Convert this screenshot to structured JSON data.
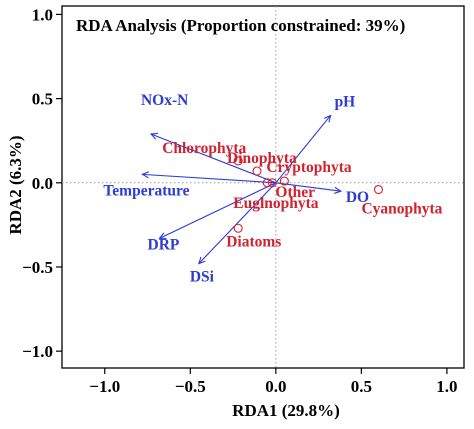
{
  "chart_data": {
    "type": "scatter",
    "title": "RDA Analysis (Proportion constrained: 39%)",
    "xlabel": "RDA1  (29.8%)",
    "ylabel": "RDA2  (6.3%)",
    "xlim": [
      -1.25,
      1.1
    ],
    "ylim": [
      -1.1,
      1.05
    ],
    "xticks": [
      -1.0,
      -0.5,
      0.0,
      0.5,
      1.0
    ],
    "yticks": [
      -1.0,
      -0.5,
      0.0,
      0.5,
      1.0
    ],
    "xtick_labels": [
      "−1.0",
      "−0.5",
      "0.0",
      "0.5",
      "1.0"
    ],
    "ytick_labels": [
      "−1.0",
      "−0.5",
      "0.0",
      "0.5",
      "1.0"
    ],
    "grid": false,
    "reference_lines": "dotted lines at x = 0 and y = 0",
    "colors": {
      "species": "#d0222f",
      "environment": "#2b3bd6",
      "axes": "#000000",
      "reference": "#9a9a9a"
    },
    "species": [
      {
        "name": "Chlorophyta",
        "x": -0.22,
        "y": 0.13
      },
      {
        "name": "Dinophyta",
        "x": -0.11,
        "y": 0.07
      },
      {
        "name": "Cryptophyta",
        "x": 0.05,
        "y": 0.01
      },
      {
        "name": "Other",
        "x": -0.02,
        "y": 0.0
      },
      {
        "name": "Euglnophyta",
        "x": -0.05,
        "y": 0.0
      },
      {
        "name": "Cyanophyta",
        "x": 0.6,
        "y": -0.04
      },
      {
        "name": "Diatoms",
        "x": -0.22,
        "y": -0.27
      }
    ],
    "environment": [
      {
        "name": "pH",
        "x": 0.32,
        "y": 0.4
      },
      {
        "name": "NOx-N",
        "x": -0.73,
        "y": 0.29
      },
      {
        "name": "Temperature",
        "x": -0.78,
        "y": 0.05
      },
      {
        "name": "DO",
        "x": 0.38,
        "y": -0.05
      },
      {
        "name": "DRP",
        "x": -0.68,
        "y": -0.33
      },
      {
        "name": "DSi",
        "x": -0.45,
        "y": -0.48
      }
    ]
  }
}
